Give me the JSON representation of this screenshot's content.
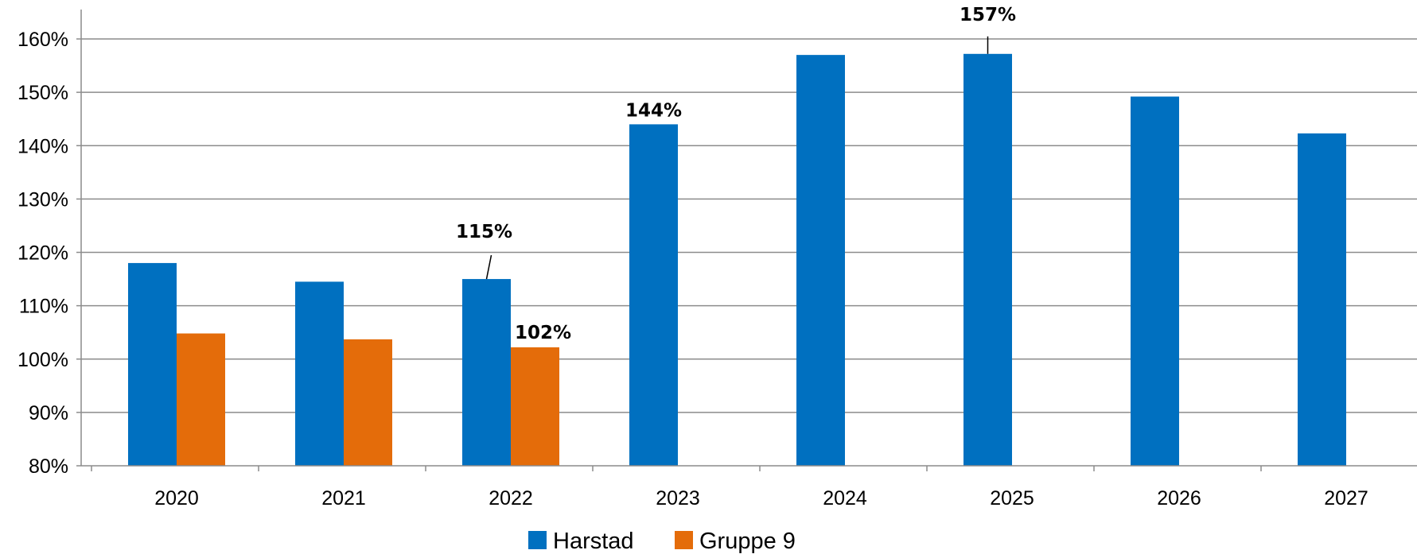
{
  "chart_data": {
    "type": "bar",
    "categories": [
      "2020",
      "2021",
      "2022",
      "2023",
      "2024",
      "2025",
      "2026",
      "2027"
    ],
    "series": [
      {
        "name": "Harstad",
        "color": "#0070C0",
        "values": [
          118,
          114.5,
          115,
          144,
          157,
          157.2,
          149.2,
          142.3
        ]
      },
      {
        "name": "Gruppe 9",
        "color": "#E46C0A",
        "values": [
          104.8,
          103.7,
          102.2,
          null,
          null,
          null,
          null,
          null
        ]
      }
    ],
    "yticks": [
      "80%",
      "90%",
      "100%",
      "110%",
      "120%",
      "130%",
      "140%",
      "150%",
      "160%"
    ],
    "ylim": [
      80,
      162
    ],
    "grid": true,
    "legend_position": "bottom",
    "data_labels": [
      {
        "series": 0,
        "category": "2022",
        "text": "115%"
      },
      {
        "series": 1,
        "category": "2022",
        "text": "102%"
      },
      {
        "series": 0,
        "category": "2023",
        "text": "144%"
      },
      {
        "series": 0,
        "category": "2025",
        "text": "157%"
      }
    ]
  }
}
